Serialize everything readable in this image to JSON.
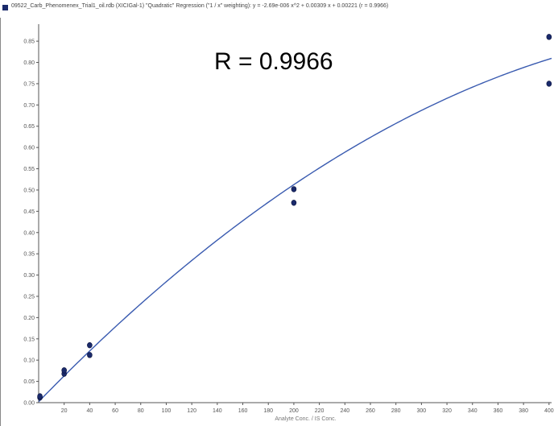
{
  "window": {
    "title": "09522_Carb_Phenomenex_Trial1_oil.rdb (XICIGal-1) \"Quadratic\" Regression (\"1 / x\" weighting): y = -2.69e-006 x^2 + 0.00309 x + 0.00221 (r = 0.9966)"
  },
  "chart_data": {
    "type": "scatter",
    "title": "",
    "xlabel": "Analyte Conc. / IS Conc.",
    "ylabel": "",
    "xlim": [
      0,
      402
    ],
    "ylim": [
      0,
      0.89
    ],
    "x_ticks": [
      20,
      40,
      60,
      80,
      100,
      120,
      140,
      160,
      180,
      200,
      220,
      240,
      260,
      280,
      300,
      320,
      340,
      360,
      380,
      400
    ],
    "y_ticks": [
      0.0,
      0.05,
      0.1,
      0.15,
      0.2,
      0.25,
      0.3,
      0.35,
      0.4,
      0.45,
      0.5,
      0.55,
      0.6,
      0.65,
      0.7,
      0.75,
      0.8,
      0.85
    ],
    "annotation": "R = 0.9966",
    "fit": {
      "a": -2.69e-06,
      "b": 0.00309,
      "c": 0.00221
    },
    "points": [
      {
        "x": 1,
        "y": 0.012
      },
      {
        "x": 1,
        "y": 0.015
      },
      {
        "x": 20,
        "y": 0.068
      },
      {
        "x": 20,
        "y": 0.076
      },
      {
        "x": 40,
        "y": 0.112
      },
      {
        "x": 40,
        "y": 0.135
      },
      {
        "x": 200,
        "y": 0.47
      },
      {
        "x": 200,
        "y": 0.502
      },
      {
        "x": 400,
        "y": 0.75
      },
      {
        "x": 400,
        "y": 0.86
      }
    ],
    "colors": {
      "points": "#1a2a6b",
      "fit_line": "#3a5bb0",
      "axes": "#555555"
    }
  }
}
